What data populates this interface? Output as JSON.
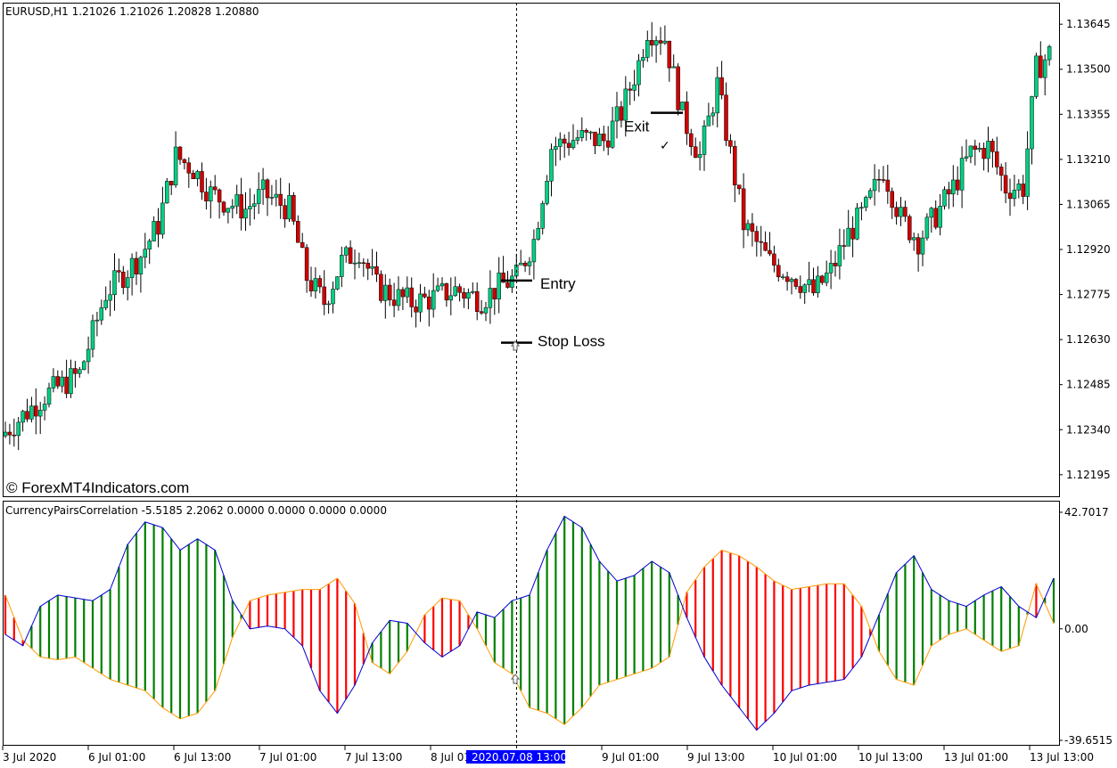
{
  "main_header": "EURUSD,H1  1.21026 1.21026 1.20828 1.20880",
  "indicator_header": "CurrencyPairsCorrelation -5.5185 2.2062 0.0000 0.0000 0.0000 0.0000",
  "watermark": "© ForexMT4Indicators.com",
  "annotations": {
    "entry": "Entry",
    "stop_loss": "Stop Loss",
    "exit": "Exit"
  },
  "crosshair_time_label": "2020.07.08 13:00",
  "colors": {
    "bull": "#00d084",
    "bear": "#d10000",
    "hist_up": "#008000",
    "hist_down": "#ff0000",
    "line_blue": "#0000cd",
    "line_orange": "#ff9900",
    "grid": "#000000"
  },
  "chart_data": [
    {
      "type": "candlestick",
      "symbol": "EURUSD",
      "timeframe": "H1",
      "price_axis_ticks": [
        "1.13645",
        "1.13500",
        "1.13355",
        "1.13210",
        "1.13065",
        "1.12920",
        "1.12775",
        "1.12630",
        "1.12485",
        "1.12340",
        "1.12195"
      ],
      "ylim": [
        1.1214,
        1.137
      ],
      "time_axis_ticks": [
        "3 Jul 2020",
        "6 Jul 01:00",
        "6 Jul 13:00",
        "7 Jul 01:00",
        "7 Jul 13:00",
        "8 Jul 01:00",
        "9 Jul 01:00",
        "9 Jul 13:00",
        "10 Jul 01:00",
        "10 Jul 13:00",
        "13 Jul 01:00",
        "13 Jul 13:00"
      ],
      "trend_path": [
        [
          0,
          1.1232
        ],
        [
          10,
          1.1245
        ],
        [
          18,
          1.1252
        ],
        [
          24,
          1.1278
        ],
        [
          32,
          1.129
        ],
        [
          36,
          1.13
        ],
        [
          40,
          1.1322
        ],
        [
          44,
          1.1318
        ],
        [
          48,
          1.131
        ],
        [
          52,
          1.1307
        ],
        [
          56,
          1.1305
        ],
        [
          60,
          1.131
        ],
        [
          66,
          1.1305
        ],
        [
          70,
          1.1283
        ],
        [
          74,
          1.1275
        ],
        [
          78,
          1.1288
        ],
        [
          82,
          1.1292
        ],
        [
          86,
          1.128
        ],
        [
          90,
          1.1277
        ],
        [
          94,
          1.1275
        ],
        [
          98,
          1.1276
        ],
        [
          104,
          1.1279
        ],
        [
          110,
          1.1276
        ],
        [
          114,
          1.128
        ],
        [
          118,
          1.1283
        ],
        [
          122,
          1.1295
        ],
        [
          126,
          1.1325
        ],
        [
          132,
          1.1328
        ],
        [
          138,
          1.1327
        ],
        [
          142,
          1.1336
        ],
        [
          146,
          1.1352
        ],
        [
          148,
          1.1363
        ],
        [
          152,
          1.136
        ],
        [
          156,
          1.1335
        ],
        [
          160,
          1.1322
        ],
        [
          164,
          1.1345
        ],
        [
          166,
          1.133
        ],
        [
          170,
          1.13
        ],
        [
          176,
          1.1288
        ],
        [
          182,
          1.1283
        ],
        [
          186,
          1.1278
        ],
        [
          190,
          1.1285
        ],
        [
          194,
          1.1297
        ],
        [
          198,
          1.1305
        ],
        [
          202,
          1.1318
        ],
        [
          206,
          1.1302
        ],
        [
          210,
          1.1295
        ],
        [
          214,
          1.1303
        ],
        [
          218,
          1.1312
        ],
        [
          222,
          1.1323
        ],
        [
          226,
          1.1325
        ],
        [
          230,
          1.1312
        ],
        [
          234,
          1.1312
        ],
        [
          237,
          1.135
        ],
        [
          240,
          1.1355
        ]
      ],
      "trade_markers": {
        "entry_price": 1.1282,
        "stop_loss_price": 1.1262,
        "exit_price": 1.1336
      }
    },
    {
      "type": "line+histogram",
      "name": "CurrencyPairsCorrelation",
      "axis_ticks": [
        "42.7017",
        "0.00",
        "-39.6515"
      ],
      "ylim": [
        -39.6515,
        42.7017
      ],
      "blue_path": [
        [
          0,
          -2
        ],
        [
          4,
          -6
        ],
        [
          8,
          8
        ],
        [
          12,
          12
        ],
        [
          16,
          11
        ],
        [
          20,
          10
        ],
        [
          24,
          14
        ],
        [
          28,
          30
        ],
        [
          32,
          38
        ],
        [
          36,
          36
        ],
        [
          40,
          28
        ],
        [
          44,
          32
        ],
        [
          48,
          28
        ],
        [
          52,
          10
        ],
        [
          56,
          0
        ],
        [
          60,
          1
        ],
        [
          64,
          0
        ],
        [
          68,
          -6
        ],
        [
          72,
          -22
        ],
        [
          76,
          -30
        ],
        [
          80,
          -20
        ],
        [
          84,
          -5
        ],
        [
          88,
          3
        ],
        [
          92,
          2
        ],
        [
          96,
          -5
        ],
        [
          100,
          -10
        ],
        [
          104,
          -6
        ],
        [
          108,
          6
        ],
        [
          112,
          4
        ],
        [
          116,
          10
        ],
        [
          120,
          12
        ],
        [
          124,
          28
        ],
        [
          128,
          40
        ],
        [
          132,
          36
        ],
        [
          136,
          24
        ],
        [
          140,
          17
        ],
        [
          144,
          19
        ],
        [
          148,
          24
        ],
        [
          152,
          20
        ],
        [
          156,
          4
        ],
        [
          160,
          -10
        ],
        [
          164,
          -20
        ],
        [
          168,
          -28
        ],
        [
          172,
          -36
        ],
        [
          176,
          -30
        ],
        [
          180,
          -22
        ],
        [
          184,
          -20
        ],
        [
          188,
          -19
        ],
        [
          192,
          -18
        ],
        [
          196,
          -10
        ],
        [
          200,
          5
        ],
        [
          204,
          20
        ],
        [
          208,
          26
        ],
        [
          212,
          14
        ],
        [
          216,
          10
        ],
        [
          220,
          8
        ],
        [
          224,
          12
        ],
        [
          228,
          15
        ],
        [
          232,
          8
        ],
        [
          236,
          4
        ],
        [
          240,
          18
        ]
      ],
      "orange_path": [
        [
          0,
          12
        ],
        [
          4,
          -4
        ],
        [
          8,
          -10
        ],
        [
          12,
          -11
        ],
        [
          16,
          -10
        ],
        [
          20,
          -14
        ],
        [
          24,
          -18
        ],
        [
          28,
          -20
        ],
        [
          32,
          -22
        ],
        [
          36,
          -28
        ],
        [
          40,
          -32
        ],
        [
          44,
          -30
        ],
        [
          48,
          -22
        ],
        [
          52,
          -3
        ],
        [
          56,
          10
        ],
        [
          60,
          12
        ],
        [
          64,
          13
        ],
        [
          68,
          14
        ],
        [
          72,
          14
        ],
        [
          76,
          18
        ],
        [
          80,
          9
        ],
        [
          84,
          -12
        ],
        [
          88,
          -16
        ],
        [
          92,
          -8
        ],
        [
          96,
          5
        ],
        [
          100,
          11
        ],
        [
          104,
          10
        ],
        [
          108,
          0
        ],
        [
          112,
          -12
        ],
        [
          116,
          -16
        ],
        [
          120,
          -28
        ],
        [
          124,
          -30
        ],
        [
          128,
          -34
        ],
        [
          132,
          -28
        ],
        [
          136,
          -20
        ],
        [
          140,
          -18
        ],
        [
          144,
          -16
        ],
        [
          148,
          -14
        ],
        [
          152,
          -10
        ],
        [
          156,
          13
        ],
        [
          160,
          22
        ],
        [
          164,
          28
        ],
        [
          168,
          26
        ],
        [
          172,
          22
        ],
        [
          176,
          17
        ],
        [
          180,
          14
        ],
        [
          184,
          15
        ],
        [
          188,
          16
        ],
        [
          192,
          16
        ],
        [
          196,
          8
        ],
        [
          200,
          -8
        ],
        [
          204,
          -18
        ],
        [
          208,
          -20
        ],
        [
          212,
          -6
        ],
        [
          216,
          -2
        ],
        [
          220,
          0
        ],
        [
          224,
          -4
        ],
        [
          228,
          -8
        ],
        [
          232,
          -6
        ],
        [
          236,
          16
        ],
        [
          240,
          2
        ]
      ]
    }
  ]
}
